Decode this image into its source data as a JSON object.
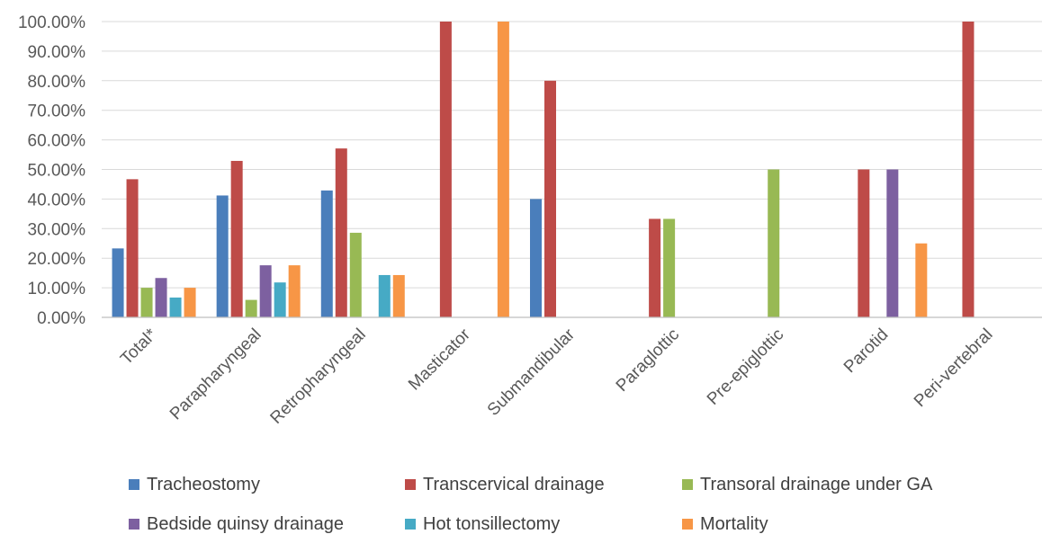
{
  "chart_data": {
    "type": "bar",
    "title": "",
    "xlabel": "",
    "ylabel": "",
    "ylim": [
      0,
      1
    ],
    "yticks": [
      "0.00%",
      "10.00%",
      "20.00%",
      "30.00%",
      "40.00%",
      "50.00%",
      "60.00%",
      "70.00%",
      "80.00%",
      "90.00%",
      "100.00%"
    ],
    "grid": true,
    "legend_position": "bottom",
    "categories": [
      "Total*",
      "Parapharyngeal",
      "Retropharyngeal",
      "Masticator",
      "Submandibular",
      "Paraglottic",
      "Pre-epiglottic",
      "Parotid",
      "Peri-vertebral"
    ],
    "series": [
      {
        "name": "Tracheostomy",
        "color": "#4a7ebb",
        "values": [
          0.233,
          0.412,
          0.429,
          0,
          0.4,
          0,
          0,
          0,
          0
        ]
      },
      {
        "name": "Transcervical drainage",
        "color": "#be4b48",
        "values": [
          0.467,
          0.529,
          0.571,
          1.0,
          0.8,
          0.333,
          0,
          0.5,
          1.0
        ]
      },
      {
        "name": "Transoral drainage under GA",
        "color": "#98b954",
        "values": [
          0.1,
          0.059,
          0.286,
          0,
          0,
          0.333,
          0.5,
          0,
          0
        ]
      },
      {
        "name": "Bedside quinsy drainage",
        "color": "#7d60a0",
        "values": [
          0.133,
          0.176,
          0,
          0,
          0,
          0,
          0,
          0.5,
          0
        ]
      },
      {
        "name": "Hot tonsillectomy",
        "color": "#46aac5",
        "values": [
          0.067,
          0.118,
          0.143,
          0,
          0,
          0,
          0,
          0,
          0
        ]
      },
      {
        "name": "Mortality",
        "color": "#f79646",
        "values": [
          0.1,
          0.176,
          0.143,
          1.0,
          0,
          0,
          0,
          0.25,
          0
        ]
      }
    ]
  }
}
